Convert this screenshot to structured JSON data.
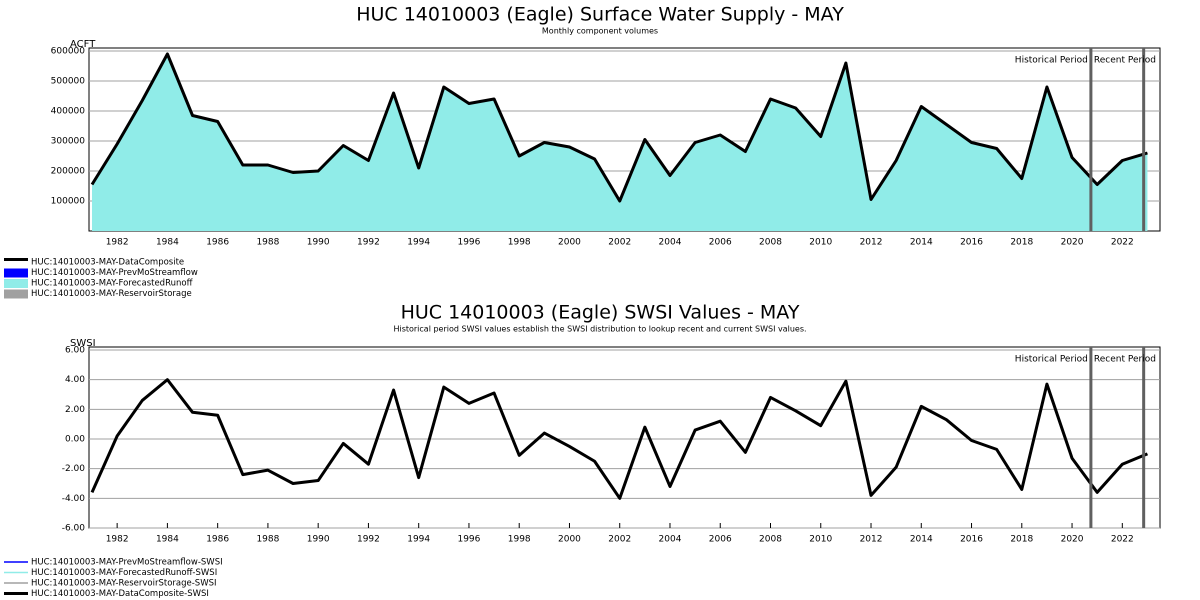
{
  "chart_data": [
    {
      "type": "area",
      "title": "HUC 14010003 (Eagle) Surface Water Supply - MAY",
      "subtitle": "Monthly component volumes",
      "y_label": "ACFT",
      "x": [
        1981,
        1982,
        1983,
        1984,
        1985,
        1986,
        1987,
        1988,
        1989,
        1990,
        1991,
        1992,
        1993,
        1994,
        1995,
        1996,
        1997,
        1998,
        1999,
        2000,
        2001,
        2002,
        2003,
        2004,
        2005,
        2006,
        2007,
        2008,
        2009,
        2010,
        2011,
        2012,
        2013,
        2014,
        2015,
        2016,
        2017,
        2018,
        2019,
        2020,
        2021,
        2022,
        2023
      ],
      "series": [
        {
          "name": "HUC:14010003-MAY-DataComposite",
          "color": "#000000",
          "style": "line",
          "values": [
            155000,
            290000,
            435000,
            590000,
            385000,
            365000,
            220000,
            220000,
            195000,
            200000,
            285000,
            235000,
            460000,
            210000,
            480000,
            425000,
            440000,
            250000,
            295000,
            280000,
            240000,
            100000,
            305000,
            185000,
            295000,
            320000,
            265000,
            440000,
            410000,
            315000,
            560000,
            105000,
            235000,
            415000,
            355000,
            295000,
            275000,
            175000,
            480000,
            245000,
            155000,
            235000,
            260000
          ]
        },
        {
          "name": "HUC:14010003-MAY-PrevMoStreamflow",
          "color": "#0000ff",
          "style": "area"
        },
        {
          "name": "HUC:14010003-MAY-ForecastedRunoff",
          "color": "#90ece8",
          "style": "area",
          "values": [
            155000,
            290000,
            435000,
            590000,
            385000,
            365000,
            220000,
            220000,
            195000,
            200000,
            285000,
            235000,
            460000,
            210000,
            480000,
            425000,
            440000,
            250000,
            295000,
            280000,
            240000,
            100000,
            305000,
            185000,
            295000,
            320000,
            265000,
            440000,
            410000,
            315000,
            560000,
            105000,
            235000,
            415000,
            355000,
            295000,
            275000,
            175000,
            480000,
            245000,
            155000,
            235000,
            260000
          ]
        },
        {
          "name": "HUC:14010003-MAY-ReservoirStorage",
          "color": "#a0a0a0",
          "style": "area"
        }
      ],
      "xlim": [
        1980.88,
        2023.5
      ],
      "xticks": [
        1982,
        1984,
        1986,
        1988,
        1990,
        1992,
        1994,
        1996,
        1998,
        2000,
        2002,
        2004,
        2006,
        2008,
        2010,
        2012,
        2014,
        2016,
        2018,
        2020,
        2022
      ],
      "ylim": [
        0,
        600000
      ],
      "yticks": [
        100000,
        200000,
        300000,
        400000,
        500000,
        600000
      ],
      "grid": true,
      "period_lines": [
        2020.75,
        2022.85
      ],
      "annotations": [
        "Historical Period",
        "Recent Period"
      ]
    },
    {
      "type": "line",
      "title": "HUC 14010003 (Eagle) SWSI Values - MAY",
      "subtitle": "Historical period SWSI values establish the SWSI distribution to lookup recent and current SWSI values.",
      "y_label": "SWSI",
      "x": [
        1981,
        1982,
        1983,
        1984,
        1985,
        1986,
        1987,
        1988,
        1989,
        1990,
        1991,
        1992,
        1993,
        1994,
        1995,
        1996,
        1997,
        1998,
        1999,
        2000,
        2001,
        2002,
        2003,
        2004,
        2005,
        2006,
        2007,
        2008,
        2009,
        2010,
        2011,
        2012,
        2013,
        2014,
        2015,
        2016,
        2017,
        2018,
        2019,
        2020,
        2021,
        2022,
        2023
      ],
      "series": [
        {
          "name": "HUC:14010003-MAY-PrevMoStreamflow-SWSI",
          "color": "#0000ff",
          "style": "line"
        },
        {
          "name": "HUC:14010003-MAY-ForecastedRunoff-SWSI",
          "color": "#90ece8",
          "style": "line"
        },
        {
          "name": "HUC:14010003-MAY-ReservoirStorage-SWSI",
          "color": "#a0a0a0",
          "style": "line"
        },
        {
          "name": "HUC:14010003-MAY-DataComposite-SWSI",
          "color": "#000000",
          "style": "line",
          "values": [
            -3.6,
            0.2,
            2.6,
            4.0,
            1.8,
            1.6,
            -2.4,
            -2.1,
            -3.0,
            -2.8,
            -0.3,
            -1.7,
            3.3,
            -2.6,
            3.5,
            2.4,
            3.1,
            -1.1,
            0.4,
            -0.5,
            -1.5,
            -4.0,
            0.8,
            -3.2,
            0.6,
            1.2,
            -0.9,
            2.8,
            1.9,
            0.9,
            3.9,
            -3.8,
            -1.9,
            2.2,
            1.3,
            -0.1,
            -0.7,
            -3.4,
            3.7,
            -1.3,
            -3.6,
            -1.7,
            -1.0
          ]
        }
      ],
      "xlim": [
        1980.88,
        2023.5
      ],
      "xticks": [
        1982,
        1984,
        1986,
        1988,
        1990,
        1992,
        1994,
        1996,
        1998,
        2000,
        2002,
        2004,
        2006,
        2008,
        2010,
        2012,
        2014,
        2016,
        2018,
        2020,
        2022
      ],
      "ylim": [
        -6,
        6
      ],
      "yticks": [
        {
          "value": -6,
          "label": "-6.00"
        },
        {
          "value": -4,
          "label": "-4.00"
        },
        {
          "value": -2,
          "label": "-2.00"
        },
        {
          "value": 0,
          "label": "0.00"
        },
        {
          "value": 2,
          "label": "2.00"
        },
        {
          "value": 4,
          "label": "4.00"
        },
        {
          "value": 6,
          "label": "6.00"
        }
      ],
      "grid": true,
      "period_lines": [
        2020.75,
        2022.85
      ],
      "annotations": [
        "Historical Period",
        "Recent Period"
      ]
    }
  ]
}
